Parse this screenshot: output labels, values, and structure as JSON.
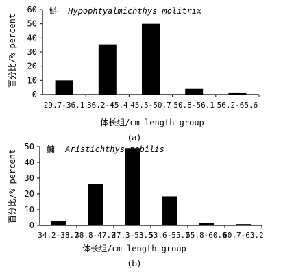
{
  "chart_data": [
    {
      "type": "bar",
      "title": "鲢 Hypophtyalmichthys molitrix",
      "title_cn": "鲢",
      "title_latin": "Hypophtyalmichthys molitrix",
      "panel_label": "(a)",
      "xlabel": "体长组/cm length group",
      "ylabel": "百分比/% percent",
      "ylim": [
        0,
        60
      ],
      "yticks": [
        0,
        10,
        20,
        30,
        40,
        50,
        60
      ],
      "grid": false,
      "categories": [
        "29.7-36.1",
        "36.2-45.4",
        "45.5-50.7",
        "50.8-56.1",
        "56.2-65.6"
      ],
      "values": [
        10,
        35.5,
        50,
        4,
        1
      ],
      "bar_color": "#000000"
    },
    {
      "type": "bar",
      "title": "鳙 Aristichthys nobilis",
      "title_cn": "鳙",
      "title_latin": "Aristichthys nobilis",
      "panel_label": "(b)",
      "xlabel": "体长组/cm length group",
      "ylabel": "百分比/% percent",
      "ylim": [
        0,
        50
      ],
      "yticks": [
        0,
        10,
        20,
        30,
        40,
        50
      ],
      "grid": false,
      "categories": [
        "34.2-38.7",
        "38.8-47.2",
        "47.3-53.5",
        "53.6-55.7",
        "55.8-60.6",
        "60.7-63.2"
      ],
      "values": [
        3,
        26.5,
        49,
        18.5,
        1.5,
        0.8
      ],
      "bar_color": "#000000"
    }
  ]
}
